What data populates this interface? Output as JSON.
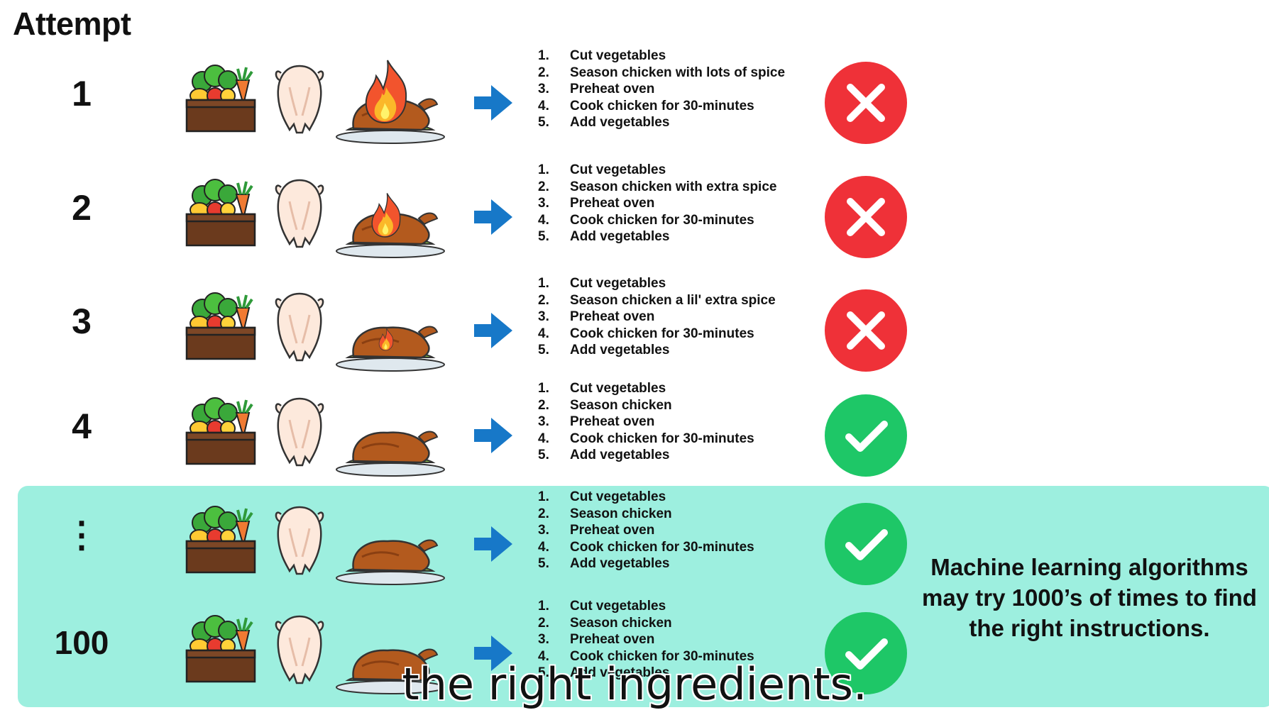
{
  "heading": "Attempt",
  "attempts": [
    {
      "label": "1",
      "flame": "large",
      "steps": [
        "Cut vegetables",
        "Season chicken with lots of spice",
        "Preheat oven",
        "Cook chicken for 30-minutes",
        "Add vegetables"
      ],
      "result_icon": "x-icon",
      "result_color": "#ef3138"
    },
    {
      "label": "2",
      "flame": "medium",
      "steps": [
        "Cut vegetables",
        "Season chicken with extra spice",
        "Preheat oven",
        "Cook chicken for 30-minutes",
        "Add vegetables"
      ],
      "result_icon": "x-icon",
      "result_color": "#ef3138"
    },
    {
      "label": "3",
      "flame": "small",
      "steps": [
        "Cut vegetables",
        "Season chicken a lil' extra spice",
        "Preheat oven",
        "Cook chicken for 30-minutes",
        "Add vegetables"
      ],
      "result_icon": "x-icon",
      "result_color": "#ef3138"
    },
    {
      "label": "4",
      "flame": "none",
      "steps": [
        "Cut vegetables",
        "Season chicken",
        "Preheat oven",
        "Cook chicken for 30-minutes",
        "Add vegetables"
      ],
      "result_icon": "check-icon",
      "result_color": "#1ec767"
    },
    {
      "label": "⋮",
      "flame": "none",
      "steps": [
        "Cut vegetables",
        "Season chicken",
        "Preheat oven",
        "Cook chicken for 30-minutes",
        "Add vegetables"
      ],
      "result_icon": "check-icon",
      "result_color": "#1ec767"
    },
    {
      "label": "100",
      "flame": "none",
      "steps": [
        "Cut vegetables",
        "Season chicken",
        "Preheat oven",
        "Cook chicken for 30-minutes",
        "Add vegetables"
      ],
      "result_icon": "check-icon",
      "result_color": "#1ec767"
    }
  ],
  "step_numbers": [
    "1.",
    "2.",
    "3.",
    "4.",
    "5."
  ],
  "note": "Machine learning algorithms may try 1000’s of times to find the right instructions.",
  "caption": "the right ingredients.",
  "colors": {
    "highlight": "#9defdf",
    "arrow": "#1778c8",
    "fail": "#ef3138",
    "success": "#1ec767"
  }
}
